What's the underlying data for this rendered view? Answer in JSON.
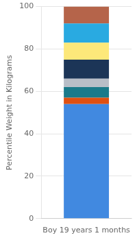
{
  "chart_data": {
    "type": "bar",
    "stacked": true,
    "categories": [
      "Boy 19 years 1 months"
    ],
    "series": [
      {
        "color": "#4189e0",
        "values": [
          54
        ]
      },
      {
        "color": "#e05010",
        "values": [
          3
        ]
      },
      {
        "color": "#1a7a8a",
        "values": [
          5
        ]
      },
      {
        "color": "#b8bec7",
        "values": [
          4
        ]
      },
      {
        "color": "#1c3557",
        "values": [
          9
        ]
      },
      {
        "color": "#fde87a",
        "values": [
          8
        ]
      },
      {
        "color": "#29aae1",
        "values": [
          9
        ]
      },
      {
        "color": "#b5644a",
        "values": [
          8
        ]
      }
    ],
    "ylabel": "Percentile Weight in Kilograms",
    "ylim": [
      0,
      100
    ],
    "yticks": [
      0,
      20,
      40,
      60,
      80,
      100
    ],
    "grid": true
  }
}
